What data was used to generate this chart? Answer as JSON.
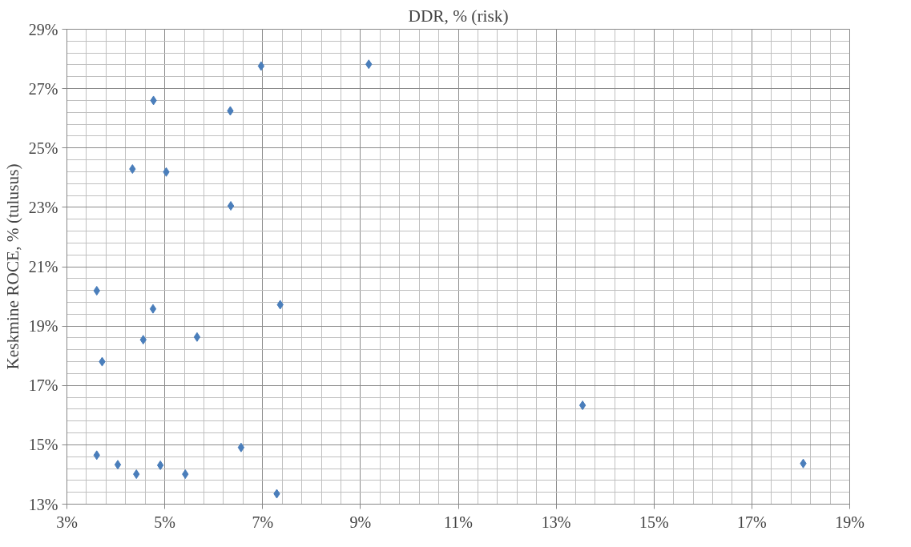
{
  "chart_data": {
    "type": "scatter",
    "xlabel": "DDR, % (risk)",
    "ylabel": "Keskmine ROCE, % (tulusus)",
    "x": [
      9.17,
      6.97,
      4.77,
      6.34,
      4.34,
      5.03,
      6.35,
      3.61,
      4.76,
      7.36,
      4.56,
      5.66,
      3.72,
      3.61,
      4.04,
      4.42,
      4.91,
      5.42,
      6.56,
      7.29,
      13.54,
      18.05
    ],
    "series": [
      {
        "color": "#4a7ebb",
        "values": [
          27.82,
          27.76,
          26.6,
          26.25,
          24.29,
          24.19,
          23.05,
          20.19,
          19.58,
          19.72,
          18.54,
          18.63,
          17.8,
          14.65,
          14.33,
          14.01,
          14.31,
          14.01,
          14.91,
          13.35,
          16.33,
          14.37
        ]
      }
    ],
    "xlim": [
      3,
      19
    ],
    "ylim": [
      13,
      29
    ],
    "xticks": [
      {
        "value": 3,
        "label": "3%"
      },
      {
        "value": 5,
        "label": "5%"
      },
      {
        "value": 7,
        "label": "7%"
      },
      {
        "value": 9,
        "label": "9%"
      },
      {
        "value": 11,
        "label": "11%"
      },
      {
        "value": 13,
        "label": "13%"
      },
      {
        "value": 15,
        "label": "15%"
      },
      {
        "value": 17,
        "label": "17%"
      },
      {
        "value": 19,
        "label": "19%"
      }
    ],
    "yticks": [
      {
        "value": 13,
        "label": "13%"
      },
      {
        "value": 15,
        "label": "15%"
      },
      {
        "value": 17,
        "label": "17%"
      },
      {
        "value": 19,
        "label": "19%"
      },
      {
        "value": 21,
        "label": "21%"
      },
      {
        "value": 23,
        "label": "23%"
      },
      {
        "value": 25,
        "label": "25%"
      },
      {
        "value": 27,
        "label": "27%"
      },
      {
        "value": 29,
        "label": "29%"
      }
    ],
    "grid": true,
    "marker": "diamond"
  }
}
